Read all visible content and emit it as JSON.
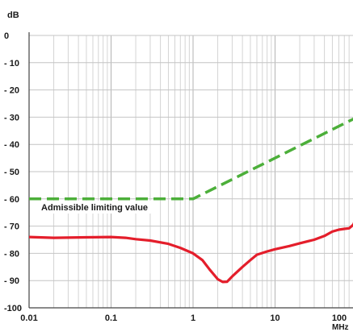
{
  "chart_data": {
    "type": "line",
    "xscale": "log",
    "xlim": [
      0.01,
      100
    ],
    "ylim": [
      -100,
      0
    ],
    "grid": true,
    "ylabel": "dB",
    "xunit": "MHz",
    "x_ticks": [
      {
        "value": 0.01,
        "label": "0.01"
      },
      {
        "value": 0.1,
        "label": "0.1"
      },
      {
        "value": 1,
        "label": "1"
      },
      {
        "value": 10,
        "label": "10"
      },
      {
        "value": 100,
        "label": "100"
      }
    ],
    "y_ticks": [
      {
        "value": 0,
        "label": "0"
      },
      {
        "value": -10,
        "label": "- 10"
      },
      {
        "value": -20,
        "label": "- 20"
      },
      {
        "value": -30,
        "label": "- 30"
      },
      {
        "value": -40,
        "label": "- 40"
      },
      {
        "value": -50,
        "label": "- 50"
      },
      {
        "value": -60,
        "label": "- 60"
      },
      {
        "value": -70,
        "label": "- 70"
      },
      {
        "value": -80,
        "label": "- 80"
      },
      {
        "value": -90,
        "label": "- 90"
      },
      {
        "value": -100,
        "label": "-100"
      }
    ],
    "series": [
      {
        "name": "Admissible limiting value",
        "style": "dashed",
        "color": "#4caf3a",
        "points": [
          [
            0.01,
            -60
          ],
          [
            1,
            -60
          ],
          [
            100,
            -30
          ]
        ]
      },
      {
        "style": "solid",
        "color": "#e41e2b",
        "points": [
          [
            0.01,
            -74
          ],
          [
            0.02,
            -74.3
          ],
          [
            0.05,
            -74.1
          ],
          [
            0.1,
            -74
          ],
          [
            0.15,
            -74.3
          ],
          [
            0.2,
            -74.8
          ],
          [
            0.3,
            -75.3
          ],
          [
            0.5,
            -76.5
          ],
          [
            0.7,
            -78
          ],
          [
            1,
            -80
          ],
          [
            1.3,
            -82.5
          ],
          [
            1.6,
            -86
          ],
          [
            2,
            -89.5
          ],
          [
            2.3,
            -90.5
          ],
          [
            2.6,
            -90.4
          ],
          [
            3,
            -88.5
          ],
          [
            4,
            -85
          ],
          [
            5,
            -82.5
          ],
          [
            6,
            -80.5
          ],
          [
            8,
            -79.3
          ],
          [
            10,
            -78.5
          ],
          [
            15,
            -77.3
          ],
          [
            20,
            -76.3
          ],
          [
            30,
            -75
          ],
          [
            40,
            -73.6
          ],
          [
            50,
            -72
          ],
          [
            60,
            -71.3
          ],
          [
            70,
            -71
          ],
          [
            80,
            -70.8
          ],
          [
            90,
            -69.5
          ],
          [
            95,
            -67.8
          ],
          [
            100,
            -64
          ]
        ]
      }
    ]
  }
}
